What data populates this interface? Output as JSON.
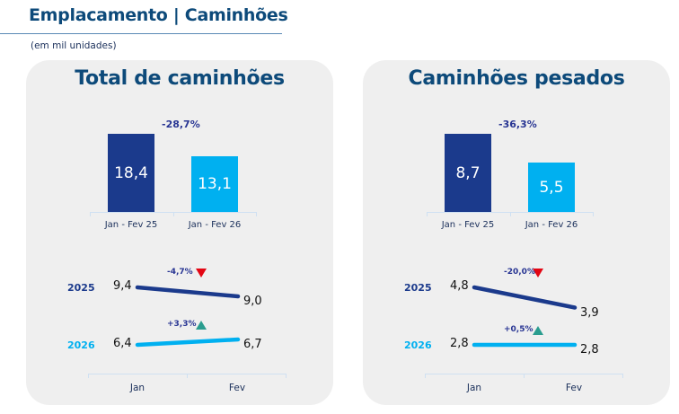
{
  "header": {
    "title": "Emplacamento | Caminhões",
    "subtitle": "(em mil unidades)"
  },
  "colors": {
    "title": "#0d4a7a",
    "series_2025": "#1b3a8c",
    "series_2026": "#00b0f0",
    "down": "#e30613",
    "up": "#2a9d8f"
  },
  "chart_data": [
    {
      "type": "bar",
      "title": "Total de caminhões",
      "categories": [
        "Jan - Fev 25",
        "Jan - Fev 26"
      ],
      "values": [
        18.4,
        13.1
      ],
      "value_labels": [
        "18,4",
        "13,1"
      ],
      "change_label": "-28,7%"
    },
    {
      "type": "line",
      "categories": [
        "Jan",
        "Fev"
      ],
      "series": [
        {
          "name": "2025",
          "values": [
            9.4,
            9.0
          ],
          "value_labels": [
            "9,4",
            "9,0"
          ],
          "change_label": "-4,7%",
          "direction": "down"
        },
        {
          "name": "2026",
          "values": [
            6.4,
            6.7
          ],
          "value_labels": [
            "6,4",
            "6,7"
          ],
          "change_label": "+3,3%",
          "direction": "up"
        }
      ]
    },
    {
      "type": "bar",
      "title": "Caminhões pesados",
      "categories": [
        "Jan - Fev 25",
        "Jan - Fev 26"
      ],
      "values": [
        8.7,
        5.5
      ],
      "value_labels": [
        "8,7",
        "5,5"
      ],
      "change_label": "-36,3%"
    },
    {
      "type": "line",
      "categories": [
        "Jan",
        "Fev"
      ],
      "series": [
        {
          "name": "2025",
          "values": [
            4.8,
            3.9
          ],
          "value_labels": [
            "4,8",
            "3,9"
          ],
          "change_label": "-20,0%",
          "direction": "down"
        },
        {
          "name": "2026",
          "values": [
            2.8,
            2.8
          ],
          "value_labels": [
            "2,8",
            "2,8"
          ],
          "change_label": "+0,5%",
          "direction": "up"
        }
      ]
    }
  ]
}
